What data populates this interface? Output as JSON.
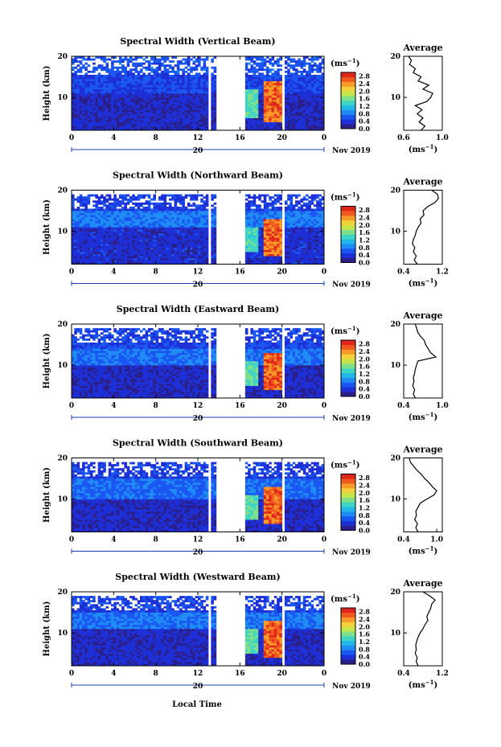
{
  "figure": {
    "xlabel_shared": "Local Time",
    "date_label": "Nov 2019",
    "date_day_label": "20",
    "cbar_unit": "(ms",
    "cbar_unit_exp": "−1",
    "cbar_unit_close": ")",
    "avg_title": "Average",
    "avg_xlabel": "(ms",
    "avg_xlabel_exp": "−1",
    "avg_xlabel_close": ")",
    "colormap": [
      "#2a1f8a",
      "#1d2fd6",
      "#1a57f2",
      "#1f8cf5",
      "#20b7e8",
      "#3fd5c4",
      "#7fe08a",
      "#c4e64a",
      "#f2d23a",
      "#f79a28",
      "#f05a1e",
      "#e0261c"
    ]
  },
  "chart_data": [
    {
      "type": "heatmap",
      "title": "Spectral Width (Vertical Beam)",
      "ylabel": "Height (km)",
      "x_ticks": [
        "0",
        "4",
        "8",
        "12",
        "16",
        "20",
        "0"
      ],
      "xlim": [
        0,
        24
      ],
      "y_ticks": [
        "10",
        "20"
      ],
      "ylim": [
        2,
        20
      ],
      "colorbar_ticks": [
        "0.0",
        "0.4",
        "0.8",
        "1.2",
        "1.6",
        "2.0",
        "2.4",
        "2.8"
      ],
      "colorbar_range": [
        0,
        3.0
      ],
      "gaps_hours": [
        [
          13.0,
          13.3
        ],
        [
          13.8,
          16.4
        ],
        [
          20.0,
          20.3
        ]
      ],
      "regions": [
        {
          "h0": 2,
          "h1": 11,
          "t0": 0,
          "t1": 24,
          "value": 0.3
        },
        {
          "h0": 11,
          "h1": 16,
          "t0": 0,
          "t1": 24,
          "value": 0.5
        },
        {
          "h0": 16,
          "h1": 20,
          "t0": 0,
          "t1": 24,
          "value": 0.6
        },
        {
          "h0": 4,
          "h1": 14,
          "t0": 18.2,
          "t1": 20.0,
          "value": 2.6
        },
        {
          "h0": 5,
          "h1": 12,
          "t0": 16.4,
          "t1": 17.8,
          "value": 1.5
        }
      ],
      "profile": {
        "xticks": [
          "0.6",
          "1.0"
        ],
        "xlim": [
          0.6,
          1.0
        ],
        "yticks": [
          "10",
          "20"
        ],
        "ylim": [
          2,
          20
        ],
        "heights": [
          2,
          3,
          4,
          5,
          6,
          7,
          8,
          9,
          10,
          11,
          12,
          13,
          14,
          15,
          16,
          17,
          18,
          19,
          20
        ],
        "values": [
          0.78,
          0.82,
          0.76,
          0.8,
          0.74,
          0.79,
          0.72,
          0.84,
          0.88,
          0.9,
          0.8,
          0.86,
          0.75,
          0.78,
          0.7,
          0.72,
          0.66,
          0.68,
          0.65
        ]
      }
    },
    {
      "type": "heatmap",
      "title": "Spectral Width (Northward Beam)",
      "ylabel": "Height (km)",
      "x_ticks": [
        "0",
        "4",
        "8",
        "12",
        "16",
        "20",
        "0"
      ],
      "xlim": [
        0,
        24
      ],
      "y_ticks": [
        "10",
        "20"
      ],
      "ylim": [
        2,
        20
      ],
      "colorbar_ticks": [
        "0.0",
        "0.4",
        "0.8",
        "1.2",
        "1.6",
        "2.0",
        "2.4",
        "2.8"
      ],
      "colorbar_range": [
        0,
        3.0
      ],
      "gaps_hours": [
        [
          13.0,
          13.3
        ],
        [
          13.8,
          16.4
        ],
        [
          20.0,
          20.3
        ]
      ],
      "regions": [
        {
          "h0": 2,
          "h1": 11,
          "t0": 0,
          "t1": 24,
          "value": 0.35
        },
        {
          "h0": 11,
          "h1": 15,
          "t0": 0,
          "t1": 24,
          "value": 0.8
        },
        {
          "h0": 15,
          "h1": 19,
          "t0": 0,
          "t1": 24,
          "value": 0.45
        },
        {
          "h0": 4,
          "h1": 13,
          "t0": 18.2,
          "t1": 20.0,
          "value": 2.6
        },
        {
          "h0": 5,
          "h1": 11,
          "t0": 16.4,
          "t1": 17.8,
          "value": 1.4
        }
      ],
      "profile": {
        "xticks": [
          "0.4",
          "1.2"
        ],
        "xlim": [
          0.4,
          1.2
        ],
        "yticks": [
          "10",
          "20"
        ],
        "ylim": [
          2,
          20
        ],
        "heights": [
          2,
          3,
          4,
          5,
          6,
          7,
          8,
          9,
          10,
          11,
          12,
          13,
          14,
          15,
          16,
          17,
          18,
          19,
          20
        ],
        "values": [
          0.68,
          0.62,
          0.66,
          0.6,
          0.63,
          0.58,
          0.6,
          0.64,
          0.66,
          0.7,
          0.76,
          0.74,
          0.82,
          0.8,
          0.9,
          1.05,
          1.12,
          1.1,
          0.98
        ]
      }
    },
    {
      "type": "heatmap",
      "title": "Spectral Width (Eastward Beam)",
      "ylabel": "Height (km)",
      "x_ticks": [
        "0",
        "4",
        "8",
        "12",
        "16",
        "20",
        "0"
      ],
      "xlim": [
        0,
        24
      ],
      "y_ticks": [
        "10",
        "20"
      ],
      "ylim": [
        2,
        20
      ],
      "colorbar_ticks": [
        "0.0",
        "0.4",
        "0.8",
        "1.2",
        "1.6",
        "2.0",
        "2.4",
        "2.8"
      ],
      "colorbar_range": [
        0,
        3.0
      ],
      "gaps_hours": [
        [
          13.0,
          13.3
        ],
        [
          13.8,
          16.4
        ],
        [
          20.0,
          20.3
        ]
      ],
      "regions": [
        {
          "h0": 2,
          "h1": 10,
          "t0": 0,
          "t1": 24,
          "value": 0.3
        },
        {
          "h0": 10,
          "h1": 14,
          "t0": 0,
          "t1": 24,
          "value": 0.75
        },
        {
          "h0": 14,
          "h1": 19,
          "t0": 0,
          "t1": 24,
          "value": 0.5
        },
        {
          "h0": 4,
          "h1": 13,
          "t0": 18.2,
          "t1": 20.0,
          "value": 2.6
        },
        {
          "h0": 5,
          "h1": 11,
          "t0": 16.4,
          "t1": 17.8,
          "value": 1.5
        }
      ],
      "profile": {
        "xticks": [
          "0.4",
          "1.0"
        ],
        "xlim": [
          0.4,
          1.0
        ],
        "yticks": [
          "10",
          "20"
        ],
        "ylim": [
          2,
          20
        ],
        "heights": [
          2,
          3,
          4,
          5,
          6,
          7,
          8,
          9,
          10,
          11,
          12,
          13,
          14,
          15,
          16,
          17,
          18,
          19,
          20
        ],
        "values": [
          0.58,
          0.55,
          0.57,
          0.54,
          0.56,
          0.55,
          0.57,
          0.58,
          0.6,
          0.62,
          0.9,
          0.82,
          0.78,
          0.74,
          0.72,
          0.66,
          0.62,
          0.6,
          0.58
        ]
      }
    },
    {
      "type": "heatmap",
      "title": "Spectral Width (Southward Beam)",
      "ylabel": "Height (km)",
      "x_ticks": [
        "0",
        "4",
        "8",
        "12",
        "16",
        "20",
        "0"
      ],
      "xlim": [
        0,
        24
      ],
      "y_ticks": [
        "10",
        "20"
      ],
      "ylim": [
        2,
        20
      ],
      "colorbar_ticks": [
        "0.0",
        "0.4",
        "0.8",
        "1.2",
        "1.6",
        "2.0",
        "2.4",
        "2.8"
      ],
      "colorbar_range": [
        0,
        3.0
      ],
      "gaps_hours": [
        [
          13.0,
          13.3
        ],
        [
          13.8,
          16.4
        ],
        [
          20.0,
          20.3
        ]
      ],
      "regions": [
        {
          "h0": 2,
          "h1": 10,
          "t0": 0,
          "t1": 24,
          "value": 0.3
        },
        {
          "h0": 10,
          "h1": 15,
          "t0": 0,
          "t1": 24,
          "value": 0.7
        },
        {
          "h0": 15,
          "h1": 19,
          "t0": 0,
          "t1": 24,
          "value": 0.45
        },
        {
          "h0": 4,
          "h1": 13,
          "t0": 18.2,
          "t1": 20.0,
          "value": 2.6
        },
        {
          "h0": 5,
          "h1": 11,
          "t0": 16.4,
          "t1": 17.8,
          "value": 1.5
        }
      ],
      "profile": {
        "xticks": [
          "0.4",
          "1.0"
        ],
        "xlim": [
          0.4,
          1.1
        ],
        "yticks": [
          "10",
          "20"
        ],
        "ylim": [
          2,
          20
        ],
        "heights": [
          2,
          3,
          4,
          5,
          6,
          7,
          8,
          9,
          10,
          11,
          12,
          13,
          14,
          15,
          16,
          17,
          18,
          19,
          20
        ],
        "values": [
          0.66,
          0.62,
          0.65,
          0.6,
          0.63,
          0.62,
          0.66,
          0.7,
          0.82,
          0.95,
          1.0,
          0.92,
          0.86,
          0.78,
          0.72,
          0.64,
          0.58,
          0.52,
          0.5
        ]
      }
    },
    {
      "type": "heatmap",
      "title": "Spectral Width (Westward Beam)",
      "ylabel": "Height (km)",
      "x_ticks": [
        "0",
        "4",
        "8",
        "12",
        "16",
        "20",
        "0"
      ],
      "xlim": [
        0,
        24
      ],
      "y_ticks": [
        "10",
        "20"
      ],
      "ylim": [
        2,
        20
      ],
      "colorbar_ticks": [
        "0.0",
        "0.4",
        "0.8",
        "1.2",
        "1.6",
        "2.0",
        "2.4",
        "2.8"
      ],
      "colorbar_range": [
        0,
        3.0
      ],
      "gaps_hours": [
        [
          13.0,
          13.3
        ],
        [
          13.8,
          16.4
        ],
        [
          20.0,
          20.3
        ]
      ],
      "regions": [
        {
          "h0": 2,
          "h1": 11,
          "t0": 0,
          "t1": 24,
          "value": 0.3
        },
        {
          "h0": 11,
          "h1": 15,
          "t0": 0,
          "t1": 24,
          "value": 0.75
        },
        {
          "h0": 15,
          "h1": 19,
          "t0": 0,
          "t1": 24,
          "value": 0.5
        },
        {
          "h0": 4,
          "h1": 13,
          "t0": 18.2,
          "t1": 20.0,
          "value": 2.6
        },
        {
          "h0": 5,
          "h1": 11,
          "t0": 16.4,
          "t1": 17.8,
          "value": 1.5
        }
      ],
      "profile": {
        "xticks": [
          "0.4",
          "1.2"
        ],
        "xlim": [
          0.4,
          1.2
        ],
        "yticks": [
          "10",
          "20"
        ],
        "ylim": [
          2,
          20
        ],
        "heights": [
          2,
          3,
          4,
          5,
          6,
          7,
          8,
          9,
          10,
          11,
          12,
          13,
          14,
          15,
          16,
          17,
          18,
          19,
          20
        ],
        "values": [
          0.7,
          0.66,
          0.68,
          0.64,
          0.66,
          0.65,
          0.67,
          0.7,
          0.74,
          0.8,
          0.84,
          0.9,
          0.88,
          0.92,
          0.96,
          0.98,
          1.05,
          0.94,
          0.8
        ]
      }
    }
  ]
}
